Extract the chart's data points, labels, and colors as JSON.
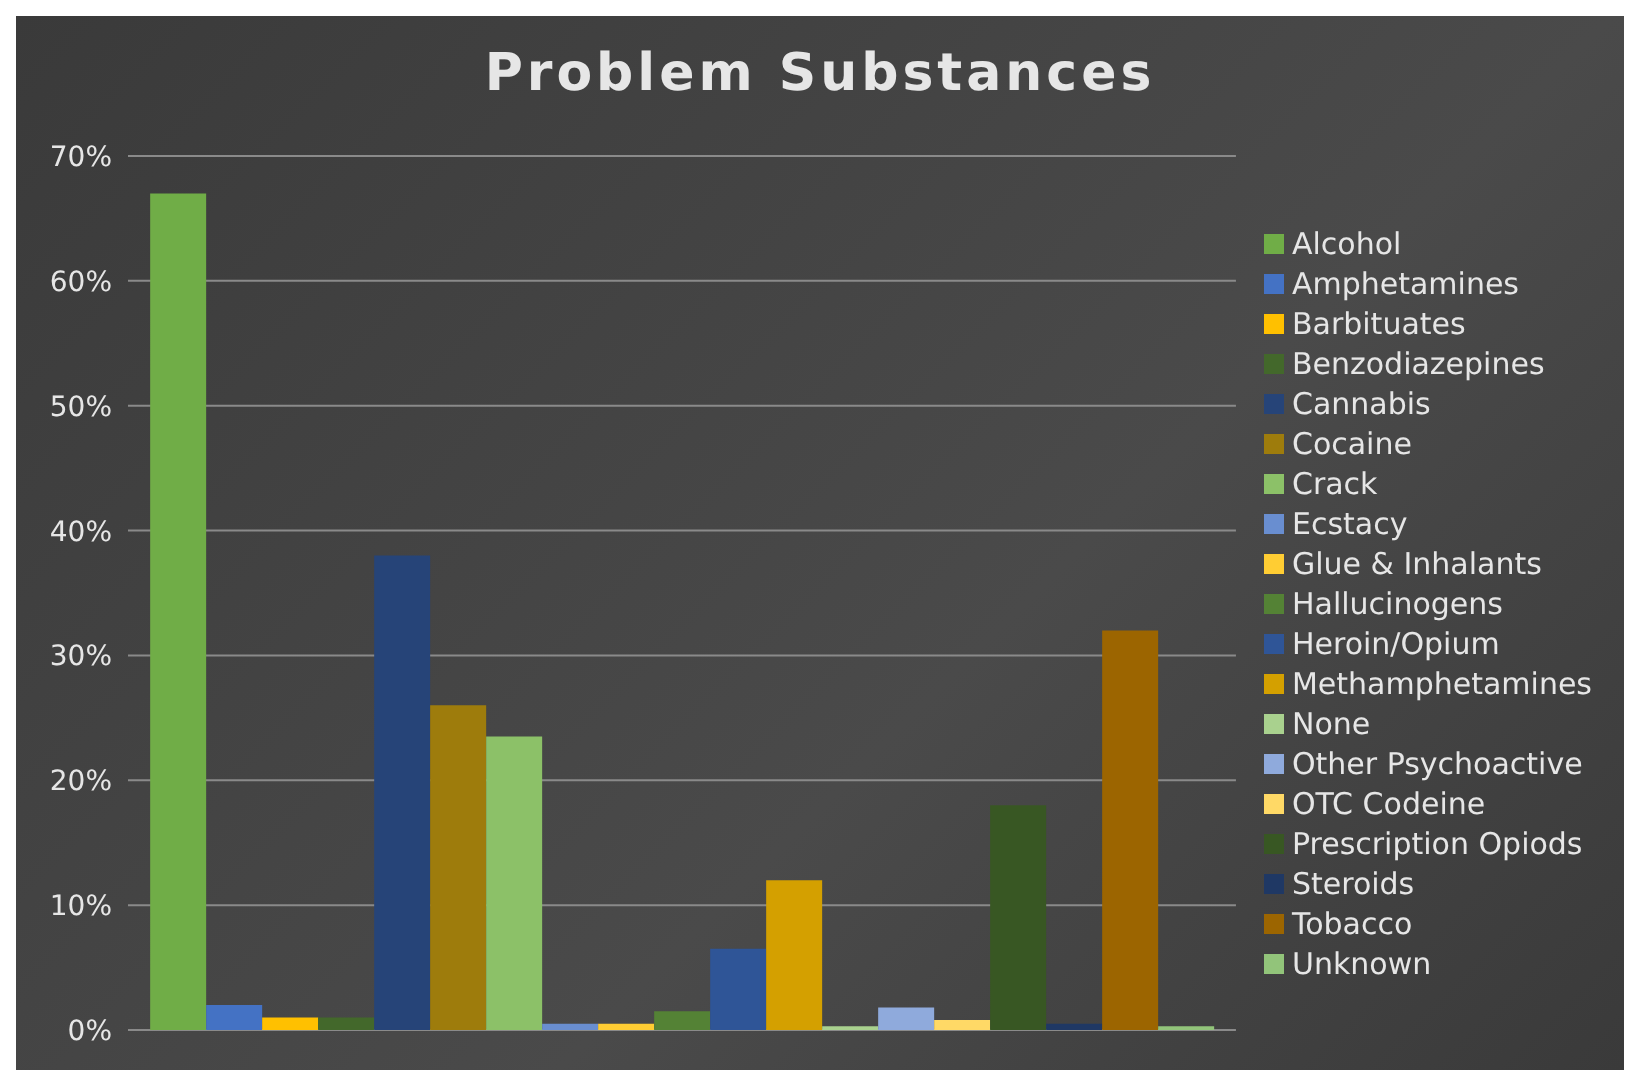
{
  "chart_data": {
    "type": "bar",
    "title": "Problem Substances",
    "categories": [
      null
    ],
    "series": [
      {
        "name": "Alcohol",
        "color": "#70ad47",
        "values": [
          67
        ]
      },
      {
        "name": "Amphetamines",
        "color": "#4472c4",
        "values": [
          2
        ]
      },
      {
        "name": "Barbituates",
        "color": "#ffc000",
        "values": [
          1
        ]
      },
      {
        "name": "Benzodiazepines",
        "color": "#43682b",
        "values": [
          1
        ]
      },
      {
        "name": "Cannabis",
        "color": "#264478",
        "values": [
          38
        ]
      },
      {
        "name": "Cocaine",
        "color": "#9e7c0c",
        "values": [
          26
        ]
      },
      {
        "name": "Crack",
        "color": "#8cc168",
        "values": [
          23.5
        ]
      },
      {
        "name": "Ecstacy",
        "color": "#698ed0",
        "values": [
          0.5
        ]
      },
      {
        "name": "Glue & Inhalants",
        "color": "#ffcd33",
        "values": [
          0.5
        ]
      },
      {
        "name": "Hallucinogens",
        "color": "#548235",
        "values": [
          1.5
        ]
      },
      {
        "name": "Heroin/Opium",
        "color": "#2f5597",
        "values": [
          6.5
        ]
      },
      {
        "name": "Methamphetamines",
        "color": "#d4a000",
        "values": [
          12
        ]
      },
      {
        "name": "None",
        "color": "#a9d18e",
        "values": [
          0.3
        ]
      },
      {
        "name": "Other Psychoactive",
        "color": "#8faadc",
        "values": [
          1.8
        ]
      },
      {
        "name": "OTC Codeine",
        "color": "#ffd966",
        "values": [
          0.8
        ]
      },
      {
        "name": "Prescription Opiods",
        "color": "#385723",
        "values": [
          18
        ]
      },
      {
        "name": "Steroids",
        "color": "#1f3864",
        "values": [
          0.5
        ]
      },
      {
        "name": "Tobacco",
        "color": "#9c6500",
        "values": [
          32
        ]
      },
      {
        "name": "Unknown",
        "color": "#92c47a",
        "values": [
          0.3
        ]
      }
    ],
    "ylim": [
      0,
      70
    ],
    "yticks": [
      {
        "value": 0,
        "label": "0%"
      },
      {
        "value": 10,
        "label": "10%"
      },
      {
        "value": 20,
        "label": "20%"
      },
      {
        "value": 30,
        "label": "30%"
      },
      {
        "value": 40,
        "label": "40%"
      },
      {
        "value": 50,
        "label": "50%"
      },
      {
        "value": 60,
        "label": "60%"
      },
      {
        "value": 70,
        "label": "70%"
      }
    ],
    "grid": "y",
    "legend": "right"
  }
}
